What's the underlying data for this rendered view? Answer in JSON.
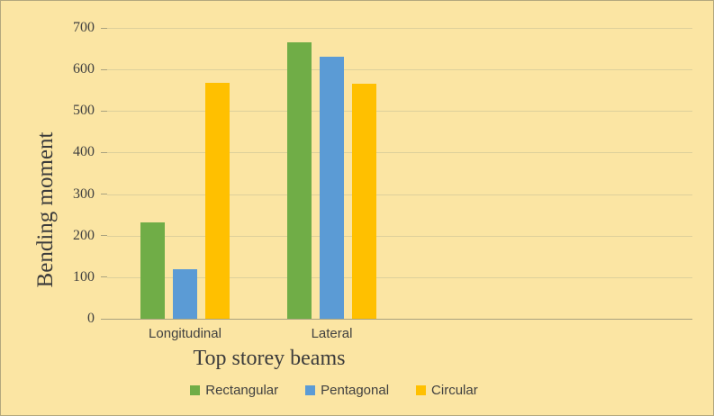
{
  "chart_data": {
    "type": "bar",
    "title": "",
    "categories": [
      "Longitudinal",
      "Lateral"
    ],
    "series": [
      {
        "name": "Rectangular",
        "color": "#70AD47",
        "values": [
          232,
          665
        ]
      },
      {
        "name": "Pentagonal",
        "color": "#5B9BD5",
        "values": [
          120,
          630
        ]
      },
      {
        "name": "Circular",
        "color": "#FFC000",
        "values": [
          568,
          565
        ]
      }
    ],
    "xlabel": "Top storey beams",
    "ylabel": "Bending moment",
    "ylim": [
      0,
      700
    ],
    "yticks": [
      0,
      100,
      200,
      300,
      400,
      500,
      600,
      700
    ],
    "grid": "horizontal",
    "legend_position": "bottom",
    "colors": {
      "background": "#FBE5A3",
      "gridline": "#DDD09B",
      "axis_line": "#A9A27F",
      "text": "#404040"
    }
  }
}
